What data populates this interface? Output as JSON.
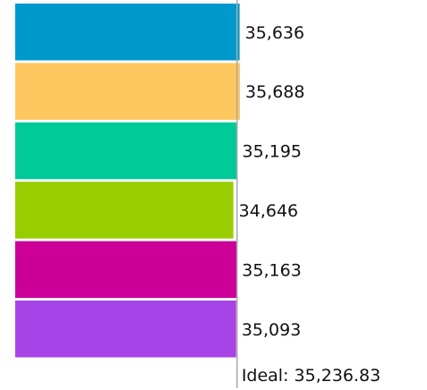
{
  "chart_data": {
    "type": "bar",
    "orientation": "horizontal",
    "values": [
      35636,
      35688,
      35195,
      34646,
      35163,
      35093
    ],
    "value_labels": [
      "35,636",
      "35,688",
      "35,195",
      "34,646",
      "35,163",
      "35,093"
    ],
    "colors": [
      "#0099cc",
      "#ffc75f",
      "#00c99a",
      "#9acd00",
      "#cc0099",
      "#a744e8"
    ],
    "ideal": {
      "value": 35236.83,
      "label": "Ideal: 35,236.83",
      "color": "#aaaaaa"
    }
  }
}
